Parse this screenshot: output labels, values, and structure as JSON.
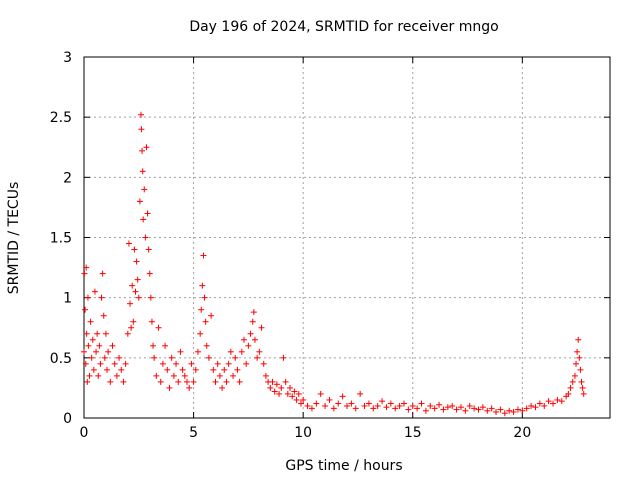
{
  "chart_data": {
    "type": "scatter",
    "title": "Day 196 of 2024, SRMTID for receiver mngo",
    "xlabel": "GPS time / hours",
    "ylabel": "SRMTID / TECUs",
    "xlim": [
      0,
      24
    ],
    "ylim": [
      0,
      3
    ],
    "xticks": [
      0,
      5,
      10,
      15,
      20
    ],
    "xtick_labels": [
      "0",
      "5",
      "10",
      "15",
      "20"
    ],
    "yticks": [
      0,
      0.5,
      1,
      1.5,
      2,
      2.5,
      3
    ],
    "ytick_labels": [
      "0",
      "0.5",
      "1",
      "1.5",
      "2",
      "2.5",
      "3"
    ],
    "grid": true,
    "marker": "+",
    "color": "#ff0000",
    "series": [
      {
        "name": "mngo",
        "points": [
          [
            0.0,
            0.55
          ],
          [
            0.02,
            1.2
          ],
          [
            0.05,
            0.9
          ],
          [
            0.08,
            0.45
          ],
          [
            0.1,
            1.25
          ],
          [
            0.12,
            0.7
          ],
          [
            0.15,
            0.3
          ],
          [
            0.18,
            1.0
          ],
          [
            0.2,
            0.6
          ],
          [
            0.25,
            0.35
          ],
          [
            0.3,
            0.8
          ],
          [
            0.35,
            0.5
          ],
          [
            0.4,
            0.65
          ],
          [
            0.45,
            0.4
          ],
          [
            0.5,
            1.05
          ],
          [
            0.55,
            0.55
          ],
          [
            0.6,
            0.7
          ],
          [
            0.65,
            0.35
          ],
          [
            0.7,
            0.6
          ],
          [
            0.75,
            0.45
          ],
          [
            0.8,
            1.0
          ],
          [
            0.85,
            1.2
          ],
          [
            0.9,
            0.85
          ],
          [
            0.95,
            0.5
          ],
          [
            1.0,
            0.7
          ],
          [
            1.05,
            0.4
          ],
          [
            1.1,
            0.55
          ],
          [
            1.2,
            0.3
          ],
          [
            1.3,
            0.6
          ],
          [
            1.4,
            0.45
          ],
          [
            1.5,
            0.35
          ],
          [
            1.6,
            0.5
          ],
          [
            1.7,
            0.4
          ],
          [
            1.8,
            0.3
          ],
          [
            1.9,
            0.45
          ],
          [
            2.0,
            0.7
          ],
          [
            2.05,
            1.45
          ],
          [
            2.1,
            0.95
          ],
          [
            2.15,
            0.75
          ],
          [
            2.2,
            1.1
          ],
          [
            2.25,
            0.8
          ],
          [
            2.3,
            1.4
          ],
          [
            2.35,
            1.05
          ],
          [
            2.4,
            1.3
          ],
          [
            2.45,
            1.15
          ],
          [
            2.5,
            1.0
          ],
          [
            2.55,
            1.8
          ],
          [
            2.6,
            2.52
          ],
          [
            2.62,
            2.4
          ],
          [
            2.65,
            2.22
          ],
          [
            2.68,
            2.05
          ],
          [
            2.7,
            1.65
          ],
          [
            2.75,
            1.9
          ],
          [
            2.8,
            1.5
          ],
          [
            2.85,
            2.25
          ],
          [
            2.9,
            1.7
          ],
          [
            2.95,
            1.4
          ],
          [
            3.0,
            1.2
          ],
          [
            3.05,
            1.0
          ],
          [
            3.1,
            0.8
          ],
          [
            3.15,
            0.6
          ],
          [
            3.2,
            0.5
          ],
          [
            3.3,
            0.35
          ],
          [
            3.4,
            0.75
          ],
          [
            3.5,
            0.3
          ],
          [
            3.6,
            0.45
          ],
          [
            3.7,
            0.6
          ],
          [
            3.8,
            0.4
          ],
          [
            3.9,
            0.25
          ],
          [
            4.0,
            0.5
          ],
          [
            4.1,
            0.35
          ],
          [
            4.2,
            0.45
          ],
          [
            4.3,
            0.3
          ],
          [
            4.4,
            0.55
          ],
          [
            4.5,
            0.4
          ],
          [
            4.6,
            0.35
          ],
          [
            4.7,
            0.3
          ],
          [
            4.8,
            0.25
          ],
          [
            4.9,
            0.45
          ],
          [
            5.0,
            0.3
          ],
          [
            5.1,
            0.4
          ],
          [
            5.2,
            0.55
          ],
          [
            5.3,
            0.7
          ],
          [
            5.35,
            0.9
          ],
          [
            5.4,
            1.1
          ],
          [
            5.45,
            1.35
          ],
          [
            5.5,
            1.0
          ],
          [
            5.55,
            0.8
          ],
          [
            5.6,
            0.6
          ],
          [
            5.7,
            0.5
          ],
          [
            5.8,
            0.85
          ],
          [
            5.9,
            0.4
          ],
          [
            6.0,
            0.3
          ],
          [
            6.1,
            0.45
          ],
          [
            6.2,
            0.35
          ],
          [
            6.3,
            0.25
          ],
          [
            6.4,
            0.4
          ],
          [
            6.5,
            0.3
          ],
          [
            6.6,
            0.45
          ],
          [
            6.7,
            0.55
          ],
          [
            6.8,
            0.35
          ],
          [
            6.9,
            0.5
          ],
          [
            7.0,
            0.4
          ],
          [
            7.1,
            0.3
          ],
          [
            7.2,
            0.55
          ],
          [
            7.3,
            0.65
          ],
          [
            7.4,
            0.45
          ],
          [
            7.5,
            0.6
          ],
          [
            7.6,
            0.7
          ],
          [
            7.7,
            0.8
          ],
          [
            7.75,
            0.88
          ],
          [
            7.8,
            0.65
          ],
          [
            7.9,
            0.5
          ],
          [
            8.0,
            0.55
          ],
          [
            8.1,
            0.75
          ],
          [
            8.2,
            0.45
          ],
          [
            8.3,
            0.35
          ],
          [
            8.4,
            0.3
          ],
          [
            8.5,
            0.25
          ],
          [
            8.6,
            0.3
          ],
          [
            8.7,
            0.22
          ],
          [
            8.8,
            0.28
          ],
          [
            8.9,
            0.2
          ],
          [
            9.0,
            0.25
          ],
          [
            9.1,
            0.5
          ],
          [
            9.2,
            0.3
          ],
          [
            9.3,
            0.2
          ],
          [
            9.4,
            0.25
          ],
          [
            9.5,
            0.18
          ],
          [
            9.6,
            0.22
          ],
          [
            9.7,
            0.15
          ],
          [
            9.8,
            0.2
          ],
          [
            9.9,
            0.12
          ],
          [
            10.0,
            0.15
          ],
          [
            10.2,
            0.1
          ],
          [
            10.4,
            0.08
          ],
          [
            10.6,
            0.12
          ],
          [
            10.8,
            0.2
          ],
          [
            11.0,
            0.1
          ],
          [
            11.2,
            0.15
          ],
          [
            11.4,
            0.08
          ],
          [
            11.6,
            0.12
          ],
          [
            11.8,
            0.18
          ],
          [
            12.0,
            0.1
          ],
          [
            12.2,
            0.12
          ],
          [
            12.4,
            0.08
          ],
          [
            12.6,
            0.2
          ],
          [
            12.8,
            0.1
          ],
          [
            13.0,
            0.12
          ],
          [
            13.2,
            0.08
          ],
          [
            13.4,
            0.1
          ],
          [
            13.6,
            0.14
          ],
          [
            13.8,
            0.09
          ],
          [
            14.0,
            0.12
          ],
          [
            14.2,
            0.08
          ],
          [
            14.4,
            0.1
          ],
          [
            14.6,
            0.12
          ],
          [
            14.8,
            0.07
          ],
          [
            15.0,
            0.1
          ],
          [
            15.2,
            0.08
          ],
          [
            15.4,
            0.12
          ],
          [
            15.6,
            0.06
          ],
          [
            15.8,
            0.1
          ],
          [
            16.0,
            0.08
          ],
          [
            16.2,
            0.11
          ],
          [
            16.4,
            0.07
          ],
          [
            16.6,
            0.09
          ],
          [
            16.8,
            0.1
          ],
          [
            17.0,
            0.07
          ],
          [
            17.2,
            0.09
          ],
          [
            17.4,
            0.06
          ],
          [
            17.6,
            0.1
          ],
          [
            17.8,
            0.08
          ],
          [
            18.0,
            0.07
          ],
          [
            18.2,
            0.09
          ],
          [
            18.4,
            0.06
          ],
          [
            18.6,
            0.08
          ],
          [
            18.8,
            0.05
          ],
          [
            19.0,
            0.07
          ],
          [
            19.2,
            0.04
          ],
          [
            19.4,
            0.06
          ],
          [
            19.6,
            0.05
          ],
          [
            19.8,
            0.07
          ],
          [
            20.0,
            0.06
          ],
          [
            20.2,
            0.08
          ],
          [
            20.4,
            0.1
          ],
          [
            20.6,
            0.09
          ],
          [
            20.8,
            0.12
          ],
          [
            21.0,
            0.1
          ],
          [
            21.2,
            0.14
          ],
          [
            21.4,
            0.12
          ],
          [
            21.6,
            0.15
          ],
          [
            21.8,
            0.14
          ],
          [
            22.0,
            0.18
          ],
          [
            22.1,
            0.2
          ],
          [
            22.2,
            0.25
          ],
          [
            22.3,
            0.3
          ],
          [
            22.4,
            0.35
          ],
          [
            22.45,
            0.45
          ],
          [
            22.5,
            0.55
          ],
          [
            22.55,
            0.65
          ],
          [
            22.6,
            0.5
          ],
          [
            22.65,
            0.4
          ],
          [
            22.7,
            0.3
          ],
          [
            22.75,
            0.25
          ],
          [
            22.8,
            0.2
          ]
        ]
      }
    ]
  }
}
